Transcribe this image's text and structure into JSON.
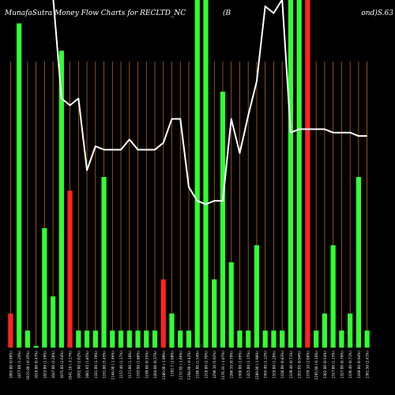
{
  "header": {
    "title": "MunafaSutra Money Flow  Charts for RECLTD_NC",
    "title_mid": "(B",
    "title_right": "ond)S.63"
  },
  "colors": {
    "background": "#000000",
    "up": "#33ff33",
    "down": "#ff2222",
    "grid": "#b5651d",
    "line": "#ffffff",
    "label": "#ffffff"
  },
  "chart_data": {
    "type": "bar",
    "grid": true,
    "bar_ylim": [
      0,
      100
    ],
    "line_ylim": [
      0,
      100
    ],
    "categories": [
      "1065.00 (0.99%)",
      "1077.00 (1.24%)",
      "1015.00 (-0.35%)",
      "1019.00 (0.47%)",
      "1023.00 (1.59%)",
      "1047.00 (2.28%)",
      "1075.00 (2.64%)",
      "1041.10 (-3.17%)",
      "1062.00 (2.02%)",
      "1081.65 (1.85%)",
      "1101.00 (1.79%)",
      "1161.00 (5.45%)",
      "1144.00 (-1.46%)",
      "1157.40 (1.17%)",
      "1171.00 (1.18%)",
      "1193.00 (1.88%)",
      "1199.60 (0.55%)",
      "1204.00 (0.37%)",
      "1180.00 (-1.99%)",
      "1192.7 (1.08%)",
      "1172.95 (-1.66%)",
      "1168.00 (-0.42%)",
      "1186.00 (1.54%)",
      "1218.00 (2.70%)",
      "1290.10 (5.92%)",
      "1276.33 (-1.07%)",
      "1286.35 (0.79%)",
      "1300.00 (1.06%)",
      "1315.00 (1.15%)",
      "1289.00 (-1.98%)",
      "1303.40 (1.12%)",
      "1319.00 (1.20%)",
      "1330.00 (0.83%)",
      "1339.40 (0.71%)",
      "1352.05 (0.94%)",
      "1379.10 (2.00%)",
      "1295.00 (-6.10%)",
      "1302.00 (0.54%)",
      "1317.00 (1.15%)",
      "1327.00 (0.76%)",
      "1336.40 (0.71%)",
      "1349.00 (0.94%)",
      "1381.50 (2.41%)"
    ],
    "bar_colors": [
      "red",
      "green",
      "green",
      "green",
      "green",
      "green",
      "green",
      "red",
      "green",
      "green",
      "green",
      "green",
      "green",
      "green",
      "green",
      "green",
      "green",
      "green",
      "red",
      "green",
      "green",
      "green",
      "green",
      "green",
      "green",
      "green",
      "green",
      "green",
      "green",
      "green",
      "green",
      "green",
      "green",
      "green",
      "green",
      "red",
      "green",
      "green",
      "green",
      "green",
      "green",
      "green",
      "green"
    ],
    "bar_values": [
      10,
      95,
      5,
      0.5,
      35,
      15,
      87,
      46,
      5,
      5,
      5,
      50,
      5,
      5,
      5,
      5,
      5,
      5,
      20,
      10,
      5,
      5,
      105,
      110,
      20,
      75,
      25,
      5,
      5,
      30,
      5,
      5,
      5,
      115,
      110,
      105,
      5,
      10,
      30,
      5,
      10,
      50,
      5
    ],
    "line_values": [
      115,
      112,
      110,
      108,
      106,
      103,
      73,
      71,
      73,
      52,
      59,
      58,
      58,
      58,
      61,
      58,
      58,
      58,
      60,
      67,
      67,
      47,
      43,
      42,
      43,
      43,
      67,
      57,
      68,
      78,
      100,
      98,
      102,
      63,
      64,
      64,
      64,
      64,
      63,
      63,
      63,
      62,
      62
    ]
  }
}
